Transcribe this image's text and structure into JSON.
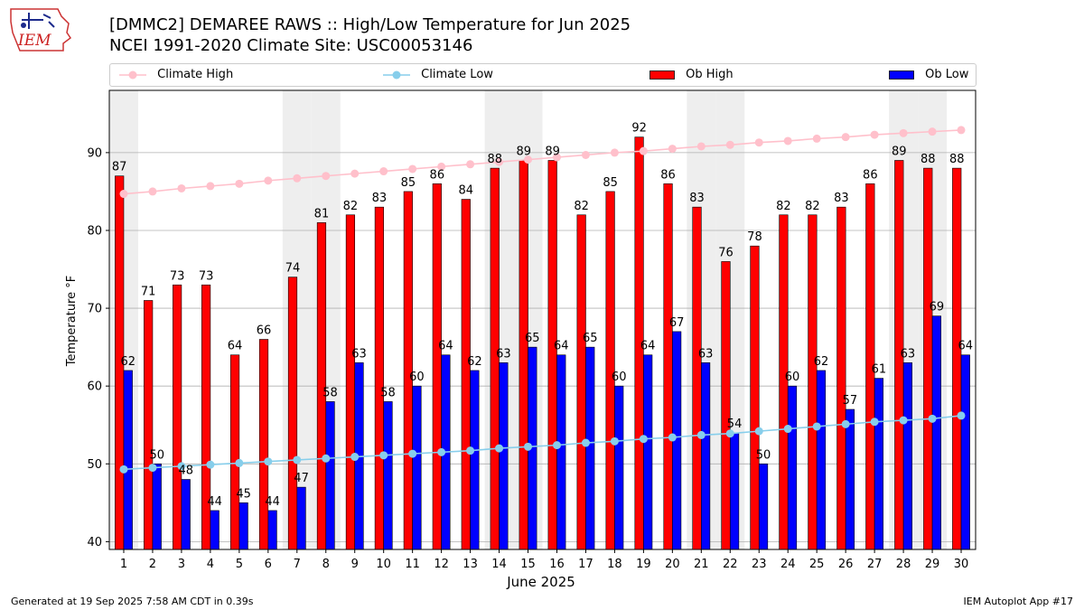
{
  "title": "[DMMC2] DEMAREE RAWS :: High/Low Temperature for Jun 2025",
  "subtitle": "NCEI 1991-2020 Climate Site: USC00053146",
  "logo_text": "IEM",
  "footer_left": "Generated at 19 Sep 2025 7:58 AM CDT in 0.39s",
  "footer_right": "IEM Autoplot App #17",
  "colors": {
    "ob_high": "#ff0000",
    "ob_low": "#0000ff",
    "climate_high": "#ffc0cb",
    "climate_low": "#87ceeb",
    "weekend_band": "#eeeeee",
    "grid": "#b0b0b0"
  },
  "legend": [
    {
      "label": "Climate High",
      "kind": "line",
      "color": "#ffc0cb"
    },
    {
      "label": "Climate Low",
      "kind": "line",
      "color": "#87ceeb"
    },
    {
      "label": "Ob High",
      "kind": "box",
      "color": "#ff0000"
    },
    {
      "label": "Ob Low",
      "kind": "box",
      "color": "#0000ff"
    }
  ],
  "chart_data": {
    "type": "bar",
    "title": "[DMMC2] DEMAREE RAWS :: High/Low Temperature for Jun 2025",
    "xlabel": "June 2025",
    "ylabel": "Temperature °F",
    "ylim": [
      39,
      98
    ],
    "yticks": [
      40,
      50,
      60,
      70,
      80,
      90
    ],
    "grid": true,
    "legend_position": "top",
    "categories": [
      "1",
      "2",
      "3",
      "4",
      "5",
      "6",
      "7",
      "8",
      "9",
      "10",
      "11",
      "12",
      "13",
      "14",
      "15",
      "16",
      "17",
      "18",
      "19",
      "20",
      "21",
      "22",
      "23",
      "24",
      "25",
      "26",
      "27",
      "28",
      "29",
      "30"
    ],
    "weekend_days": [
      1,
      7,
      8,
      14,
      15,
      21,
      22,
      28,
      29
    ],
    "series": [
      {
        "name": "Ob High",
        "type": "bar",
        "values": [
          87,
          71,
          73,
          73,
          64,
          66,
          74,
          81,
          82,
          83,
          85,
          86,
          84,
          88,
          89,
          89,
          82,
          85,
          92,
          86,
          83,
          76,
          78,
          82,
          82,
          83,
          86,
          89,
          88,
          88
        ]
      },
      {
        "name": "Ob Low",
        "type": "bar",
        "values": [
          62,
          50,
          48,
          44,
          45,
          44,
          47,
          58,
          63,
          58,
          60,
          64,
          62,
          63,
          65,
          64,
          65,
          60,
          64,
          67,
          63,
          54,
          50,
          60,
          62,
          57,
          61,
          63,
          69,
          64
        ]
      },
      {
        "name": "Climate High",
        "type": "line",
        "values": [
          84.7,
          85.0,
          85.4,
          85.7,
          86.0,
          86.4,
          86.7,
          87.0,
          87.3,
          87.6,
          87.9,
          88.2,
          88.5,
          88.8,
          89.1,
          89.4,
          89.7,
          90.0,
          90.2,
          90.5,
          90.8,
          91.0,
          91.3,
          91.5,
          91.8,
          92.0,
          92.3,
          92.5,
          92.7,
          92.9
        ]
      },
      {
        "name": "Climate Low",
        "type": "line",
        "values": [
          49.3,
          49.5,
          49.7,
          49.9,
          50.1,
          50.3,
          50.5,
          50.7,
          50.9,
          51.1,
          51.3,
          51.5,
          51.7,
          52.0,
          52.2,
          52.4,
          52.7,
          52.9,
          53.2,
          53.4,
          53.7,
          53.9,
          54.2,
          54.5,
          54.8,
          55.1,
          55.4,
          55.6,
          55.8,
          56.2
        ]
      }
    ]
  }
}
